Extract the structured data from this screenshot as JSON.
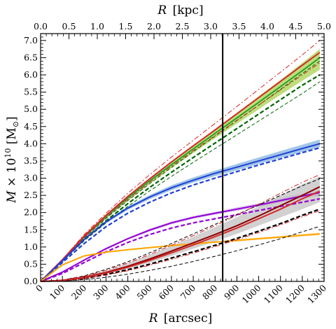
{
  "chart_data": {
    "type": "line",
    "title": "",
    "xlabel_bottom": {
      "symbol": "R",
      "unit": "[arcsec]"
    },
    "xlabel_top": {
      "symbol": "R",
      "unit": "[kpc]"
    },
    "ylabel": {
      "symbol": "M",
      "times": " × 10",
      "exp": "10",
      "unit_open": " [M",
      "unit_sub": "⊙",
      "unit_close": "]"
    },
    "xlim": [
      0,
      1300
    ],
    "ylim": [
      0,
      7.2
    ],
    "x_ticks": [
      "0",
      "100",
      "200",
      "300",
      "400",
      "500",
      "600",
      "700",
      "800",
      "900",
      "1000",
      "1100",
      "1200",
      "1300"
    ],
    "x_top_lim": [
      0,
      5.0
    ],
    "x_top_ticks": [
      "0.0",
      "0.5",
      "1.0",
      "1.5",
      "2.0",
      "2.5",
      "3.0",
      "3.5",
      "4.0",
      "4.5",
      "5.0"
    ],
    "y_ticks": [
      "0.0",
      "0.5",
      "1.0",
      "1.5",
      "2.0",
      "2.5",
      "3.0",
      "3.5",
      "4.0",
      "4.5",
      "5.0",
      "5.5",
      "6.0",
      "6.5",
      "7.0"
    ],
    "vline_x": 835,
    "grid": false,
    "legend": "none",
    "series": [
      {
        "color": "#2ca02c",
        "band_color": "#9acd32",
        "style": "solid",
        "x": [
          0,
          100,
          200,
          300,
          400,
          500,
          600,
          700,
          800,
          900,
          1000,
          1100,
          1200,
          1280
        ],
        "y": [
          0,
          0.62,
          1.3,
          1.88,
          2.42,
          2.92,
          3.39,
          3.85,
          4.3,
          4.75,
          5.2,
          5.66,
          6.12,
          6.5
        ],
        "band_lower": [
          0,
          0.6,
          1.26,
          1.82,
          2.34,
          2.83,
          3.29,
          3.73,
          4.16,
          4.58,
          5.0,
          5.42,
          5.83,
          6.15
        ],
        "band_upper": [
          0,
          0.64,
          1.33,
          1.93,
          2.48,
          3.0,
          3.48,
          3.96,
          4.43,
          4.9,
          5.38,
          5.85,
          6.35,
          6.75
        ]
      },
      {
        "color": "#006400",
        "style": "dashed",
        "x": [
          0,
          100,
          200,
          300,
          400,
          500,
          600,
          700,
          800,
          900,
          1000,
          1100,
          1200,
          1280
        ],
        "y": [
          0,
          0.6,
          1.22,
          1.76,
          2.26,
          2.73,
          3.17,
          3.6,
          4.02,
          4.44,
          4.86,
          5.28,
          5.7,
          6.0
        ]
      },
      {
        "color": "#006400",
        "style": "dashed-thin",
        "x": [
          0,
          100,
          200,
          300,
          400,
          500,
          600,
          700,
          800,
          900,
          1000,
          1100,
          1200,
          1280
        ],
        "y": [
          0,
          0.61,
          1.26,
          1.83,
          2.35,
          2.84,
          3.31,
          3.77,
          4.22,
          4.67,
          5.12,
          5.58,
          6.04,
          6.4
        ]
      },
      {
        "color": "#006400",
        "style": "dashed-thin",
        "x": [
          0,
          100,
          200,
          300,
          400,
          500,
          600,
          700,
          800,
          900,
          1000,
          1100,
          1200,
          1280
        ],
        "y": [
          0,
          0.58,
          1.18,
          1.7,
          2.18,
          2.63,
          3.05,
          3.46,
          3.86,
          4.26,
          4.66,
          5.06,
          5.46,
          5.8
        ]
      },
      {
        "color": "#d62728",
        "style": "solid",
        "x": [
          0,
          100,
          200,
          300,
          400,
          500,
          600,
          700,
          800,
          900,
          1000,
          1100,
          1200,
          1280
        ],
        "y": [
          0,
          0.63,
          1.32,
          1.92,
          2.47,
          2.98,
          3.47,
          3.94,
          4.4,
          4.87,
          5.34,
          5.81,
          6.28,
          6.65
        ]
      },
      {
        "color": "#d62728",
        "style": "dashdot",
        "x": [
          0,
          100,
          200,
          300,
          400,
          500,
          600,
          700,
          800,
          900,
          1000,
          1100,
          1200,
          1280
        ],
        "y": [
          0,
          0.64,
          1.36,
          1.98,
          2.56,
          3.1,
          3.61,
          4.1,
          4.59,
          5.08,
          5.58,
          6.08,
          6.58,
          7.0
        ]
      },
      {
        "color": "#d62728",
        "style": "dashdot",
        "x": [
          0,
          100,
          200,
          300,
          400,
          500,
          600,
          700,
          800,
          900,
          1000,
          1100,
          1200,
          1280
        ],
        "y": [
          0,
          0.62,
          1.28,
          1.86,
          2.39,
          2.88,
          3.35,
          3.8,
          4.24,
          4.68,
          5.12,
          5.56,
          6.0,
          6.35
        ]
      },
      {
        "color": "#1f3fd6",
        "band_color": "#6fa8dc",
        "style": "solid",
        "x": [
          0,
          100,
          200,
          300,
          400,
          500,
          600,
          700,
          800,
          900,
          1000,
          1100,
          1200,
          1280
        ],
        "y": [
          0,
          0.6,
          1.22,
          1.73,
          2.13,
          2.45,
          2.72,
          2.94,
          3.14,
          3.32,
          3.5,
          3.68,
          3.86,
          4.0
        ],
        "band_lower": [
          0,
          0.58,
          1.19,
          1.69,
          2.08,
          2.39,
          2.65,
          2.87,
          3.06,
          3.23,
          3.41,
          3.59,
          3.76,
          3.9
        ],
        "band_upper": [
          0,
          0.62,
          1.25,
          1.77,
          2.18,
          2.51,
          2.79,
          3.02,
          3.22,
          3.41,
          3.6,
          3.79,
          3.97,
          4.12
        ]
      },
      {
        "color": "#1f3fd6",
        "style": "dashed",
        "x": [
          0,
          100,
          200,
          300,
          400,
          500,
          600,
          700,
          800,
          900,
          1000,
          1100,
          1200,
          1280
        ],
        "y": [
          0,
          0.55,
          1.1,
          1.59,
          1.98,
          2.3,
          2.57,
          2.8,
          3.0,
          3.19,
          3.38,
          3.56,
          3.74,
          3.88
        ]
      },
      {
        "color": "#9400d3",
        "band_color": "#c9a0e8",
        "style": "solid",
        "x": [
          0,
          100,
          200,
          300,
          400,
          500,
          600,
          700,
          800,
          900,
          1000,
          1100,
          1200,
          1280
        ],
        "y": [
          0,
          0.27,
          0.62,
          0.95,
          1.24,
          1.49,
          1.7,
          1.86,
          1.98,
          2.1,
          2.22,
          2.35,
          2.48,
          2.58
        ],
        "band_lower": [
          0,
          0.26,
          0.6,
          0.92,
          1.21,
          1.45,
          1.66,
          1.82,
          1.94,
          2.05,
          2.17,
          2.29,
          2.41,
          2.5
        ],
        "band_upper": [
          0,
          0.28,
          0.64,
          0.98,
          1.27,
          1.53,
          1.74,
          1.9,
          2.02,
          2.15,
          2.27,
          2.41,
          2.55,
          2.66
        ]
      },
      {
        "color": "#9400d3",
        "style": "dashed",
        "x": [
          0,
          100,
          200,
          300,
          400,
          500,
          600,
          700,
          800,
          900,
          1000,
          1100,
          1200,
          1280
        ],
        "y": [
          0,
          0.23,
          0.55,
          0.86,
          1.13,
          1.36,
          1.55,
          1.7,
          1.82,
          1.94,
          2.06,
          2.18,
          2.3,
          2.4
        ]
      },
      {
        "color": "#ffa500",
        "band_color": "#ffd27f",
        "style": "solid",
        "x": [
          0,
          100,
          200,
          300,
          400,
          500,
          600,
          700,
          800,
          900,
          1000,
          1100,
          1200,
          1280
        ],
        "y": [
          0,
          0.48,
          0.74,
          0.85,
          0.92,
          0.98,
          1.04,
          1.09,
          1.14,
          1.19,
          1.24,
          1.29,
          1.34,
          1.38
        ],
        "band_lower": [
          0,
          0.47,
          0.72,
          0.83,
          0.9,
          0.96,
          1.02,
          1.07,
          1.12,
          1.16,
          1.21,
          1.26,
          1.31,
          1.34
        ],
        "band_upper": [
          0,
          0.49,
          0.76,
          0.87,
          0.94,
          1.0,
          1.06,
          1.11,
          1.16,
          1.22,
          1.27,
          1.32,
          1.37,
          1.42
        ]
      },
      {
        "color": "#8b0000",
        "band_color": "#b8b8b8",
        "style": "solid",
        "x": [
          0,
          100,
          200,
          300,
          400,
          500,
          600,
          700,
          800,
          900,
          1000,
          1100,
          1200,
          1280
        ],
        "y": [
          0,
          0.03,
          0.12,
          0.26,
          0.44,
          0.65,
          0.88,
          1.12,
          1.36,
          1.62,
          1.9,
          2.2,
          2.5,
          2.75
        ],
        "band_lower": [
          0,
          0.02,
          0.09,
          0.21,
          0.36,
          0.54,
          0.74,
          0.95,
          1.16,
          1.38,
          1.62,
          1.86,
          2.1,
          2.3
        ],
        "band_upper": [
          0,
          0.04,
          0.15,
          0.31,
          0.52,
          0.77,
          1.03,
          1.3,
          1.58,
          1.87,
          2.18,
          2.5,
          2.82,
          3.05
        ]
      },
      {
        "color": "#000000",
        "style": "dashed",
        "x": [
          0,
          100,
          200,
          300,
          400,
          500,
          600,
          700,
          800,
          900,
          1000,
          1100,
          1200,
          1280
        ],
        "y": [
          0,
          0.02,
          0.09,
          0.2,
          0.34,
          0.5,
          0.68,
          0.86,
          1.05,
          1.25,
          1.46,
          1.68,
          1.92,
          2.1
        ]
      },
      {
        "color": "#000000",
        "style": "dashed-thin",
        "x": [
          0,
          100,
          200,
          300,
          400,
          500,
          600,
          700,
          800,
          900,
          1000,
          1100,
          1200,
          1280
        ],
        "y": [
          0,
          0.04,
          0.16,
          0.35,
          0.57,
          0.83,
          1.1,
          1.38,
          1.66,
          1.94,
          2.22,
          2.5,
          2.78,
          2.98
        ]
      },
      {
        "color": "#000000",
        "style": "dashed-thin",
        "x": [
          0,
          100,
          200,
          300,
          400,
          500,
          600,
          700,
          800,
          900,
          1000,
          1100,
          1200,
          1280
        ],
        "y": [
          0,
          0.01,
          0.05,
          0.12,
          0.21,
          0.32,
          0.44,
          0.58,
          0.73,
          0.89,
          1.06,
          1.24,
          1.44,
          1.6
        ]
      },
      {
        "color": "#d62728",
        "style": "solid",
        "x": [
          0,
          100,
          200,
          300,
          400,
          500,
          600,
          700,
          800,
          900,
          1000,
          1100,
          1200,
          1280
        ],
        "y": [
          0,
          0.03,
          0.11,
          0.24,
          0.41,
          0.61,
          0.83,
          1.06,
          1.3,
          1.55,
          1.82,
          2.1,
          2.4,
          2.62
        ]
      },
      {
        "color": "#d62728",
        "style": "dashdot",
        "x": [
          0,
          100,
          200,
          300,
          400,
          500,
          600,
          700,
          800,
          900,
          1000,
          1100,
          1200,
          1280
        ],
        "y": [
          0,
          0.04,
          0.15,
          0.32,
          0.53,
          0.78,
          1.05,
          1.33,
          1.62,
          1.92,
          2.24,
          2.56,
          2.88,
          3.1
        ]
      },
      {
        "color": "#d62728",
        "style": "dashdot",
        "x": [
          0,
          100,
          200,
          300,
          400,
          500,
          600,
          700,
          800,
          900,
          1000,
          1100,
          1200,
          1280
        ],
        "y": [
          0,
          0.02,
          0.08,
          0.18,
          0.31,
          0.47,
          0.64,
          0.82,
          1.01,
          1.21,
          1.42,
          1.64,
          1.88,
          2.05
        ]
      }
    ]
  }
}
